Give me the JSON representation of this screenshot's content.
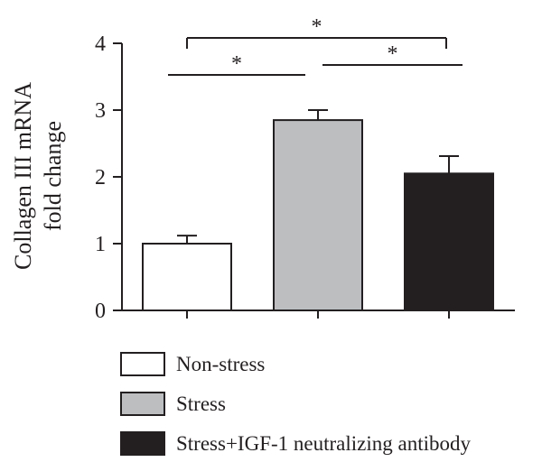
{
  "chart_data": {
    "type": "bar",
    "title": "",
    "ylabel_lines": [
      "Collagen III mRNA",
      "fold change"
    ],
    "xlabel": "",
    "ylim": [
      0,
      4
    ],
    "yticks": [
      "0",
      "1",
      "2",
      "3",
      "4"
    ],
    "categories": [
      "Non-stress",
      "Stress",
      "Stress+IGF-1 neutralizing antibody"
    ],
    "values": [
      1.0,
      2.85,
      2.05
    ],
    "errors": [
      0.12,
      0.15,
      0.26
    ],
    "colors": [
      "#ffffff",
      "#bcbec0",
      "#231f20"
    ],
    "significance": [
      {
        "from": 0,
        "to": 1,
        "label": "*"
      },
      {
        "from": 1,
        "to": 2,
        "label": "*"
      },
      {
        "from": 0,
        "to": 2,
        "label": "*"
      }
    ],
    "legend_position": "bottom",
    "grid": false
  }
}
